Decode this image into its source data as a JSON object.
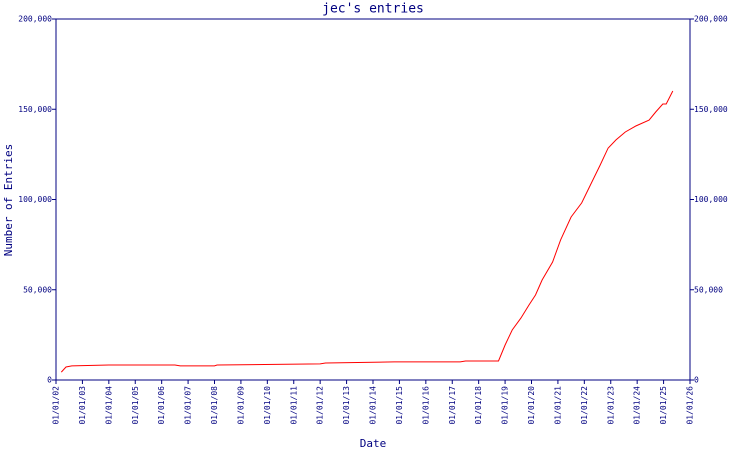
{
  "chart_data": {
    "type": "line",
    "title": "jec's entries",
    "ylabel": "Number of Entries",
    "xlabel": "Date",
    "color": "#ff0000",
    "x": [
      2002.2,
      2002.38,
      2002.6,
      2004.0,
      2006.5,
      2006.7,
      2008.0,
      2008.1,
      2009.9,
      2012.0,
      2012.2,
      2014.8,
      2017.3,
      2017.5,
      2018.75,
      2019.0,
      2019.27,
      2019.6,
      2019.9,
      2020.15,
      2020.4,
      2020.8,
      2021.1,
      2021.5,
      2021.9,
      2022.25,
      2022.6,
      2022.9,
      2023.2,
      2023.55,
      2023.95,
      2024.45,
      2024.7,
      2024.97,
      2025.1,
      2025.35
    ],
    "values": [
      4400,
      7200,
      7800,
      8300,
      8300,
      7800,
      7800,
      8300,
      8600,
      8900,
      9400,
      10000,
      10000,
      10500,
      10500,
      19400,
      27700,
      34300,
      41500,
      47100,
      55400,
      65400,
      77600,
      90300,
      98100,
      108600,
      119100,
      128500,
      133000,
      137400,
      140700,
      144000,
      148500,
      152900,
      152900,
      160100
    ],
    "xlim": [
      2002,
      2026
    ],
    "xticks": [
      {
        "value": 2002,
        "label": "01/01/02"
      },
      {
        "value": 2003,
        "label": "01/01/03"
      },
      {
        "value": 2004,
        "label": "01/01/04"
      },
      {
        "value": 2005,
        "label": "01/01/05"
      },
      {
        "value": 2006,
        "label": "01/01/06"
      },
      {
        "value": 2007,
        "label": "01/01/07"
      },
      {
        "value": 2008,
        "label": "01/01/08"
      },
      {
        "value": 2009,
        "label": "01/01/09"
      },
      {
        "value": 2010,
        "label": "01/01/10"
      },
      {
        "value": 2011,
        "label": "01/01/11"
      },
      {
        "value": 2012,
        "label": "01/01/12"
      },
      {
        "value": 2013,
        "label": "01/01/13"
      },
      {
        "value": 2014,
        "label": "01/01/14"
      },
      {
        "value": 2015,
        "label": "01/01/15"
      },
      {
        "value": 2016,
        "label": "01/01/16"
      },
      {
        "value": 2017,
        "label": "01/01/17"
      },
      {
        "value": 2018,
        "label": "01/01/18"
      },
      {
        "value": 2019,
        "label": "01/01/19"
      },
      {
        "value": 2020,
        "label": "01/01/20"
      },
      {
        "value": 2021,
        "label": "01/01/21"
      },
      {
        "value": 2022,
        "label": "01/01/22"
      },
      {
        "value": 2023,
        "label": "01/01/23"
      },
      {
        "value": 2024,
        "label": "01/01/24"
      },
      {
        "value": 2025,
        "label": "01/01/25"
      },
      {
        "value": 2026,
        "label": "01/01/26"
      }
    ],
    "ylim": [
      0,
      200000
    ],
    "yticks": [
      0,
      {
        "value": 50000,
        "label": "50,000"
      },
      {
        "value": 100000,
        "label": "100,000"
      },
      {
        "value": 150000,
        "label": "150,000"
      },
      {
        "value": 200000,
        "label": "200,000"
      }
    ]
  }
}
